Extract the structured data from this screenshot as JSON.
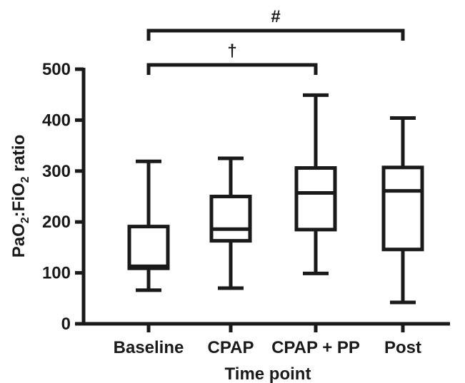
{
  "chart_data": {
    "type": "boxplot",
    "categories": [
      "Baseline",
      "CPAP",
      "CPAP + PP",
      "Post"
    ],
    "series": [
      {
        "values": [
          {
            "category": "Baseline",
            "min": 66,
            "q1": 109,
            "median": 113,
            "q3": 191,
            "max": 319
          },
          {
            "category": "CPAP",
            "min": 70,
            "q1": 163,
            "median": 186,
            "q3": 250,
            "max": 325
          },
          {
            "category": "CPAP + PP",
            "min": 99,
            "q1": 185,
            "median": 257,
            "q3": 306,
            "max": 449
          },
          {
            "category": "Post",
            "min": 42,
            "q1": 146,
            "median": 261,
            "q3": 307,
            "max": 404
          }
        ]
      }
    ],
    "xlabel": "Time point",
    "ylabel_parts": {
      "a": "PaO",
      "sub1": "2",
      "b": ":FiO",
      "sub2": "2",
      "c": " ratio"
    },
    "ylim": [
      0,
      500
    ],
    "yticks": [
      {
        "value": 0,
        "label": "0"
      },
      {
        "value": 100,
        "label": "100"
      },
      {
        "value": 200,
        "label": "200"
      },
      {
        "value": 300,
        "label": "300"
      },
      {
        "value": 400,
        "label": "400"
      },
      {
        "value": 500,
        "label": "500"
      }
    ],
    "significance": [
      {
        "from": "Baseline",
        "to": "CPAP + PP",
        "label": "†"
      },
      {
        "from": "Baseline",
        "to": "Post",
        "label": "#"
      }
    ],
    "grid": false
  }
}
